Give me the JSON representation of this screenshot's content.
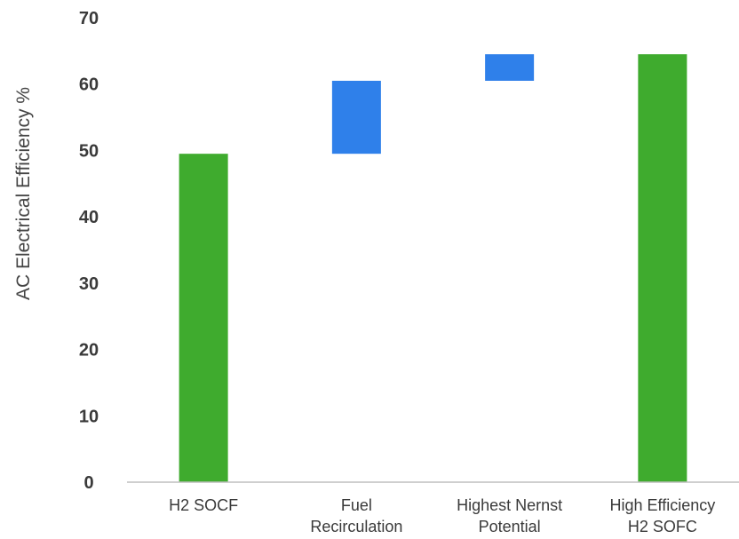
{
  "chart_data": {
    "type": "bar",
    "subtype": "waterfall",
    "title": "",
    "xlabel": "",
    "ylabel": "AC Electrical Efficiency  %",
    "ylim": [
      0,
      70
    ],
    "yticks": [
      "0",
      "10",
      "20",
      "30",
      "40",
      "50",
      "60",
      "70"
    ],
    "grid": false,
    "categories": [
      [
        "H2 SOCF"
      ],
      [
        "Fuel",
        "Recirculation"
      ],
      [
        "Highest Nernst",
        "Potential"
      ],
      [
        "High Efficiency",
        "H2 SOFC"
      ]
    ],
    "bars": [
      {
        "kind": "total",
        "start": 0,
        "end": 49.5
      },
      {
        "kind": "increase",
        "start": 49.5,
        "end": 60.5
      },
      {
        "kind": "increase",
        "start": 60.5,
        "end": 64.5
      },
      {
        "kind": "total",
        "start": 0,
        "end": 64.5
      }
    ],
    "colors": {
      "total": "#3fab2e",
      "increase": "#2f80ea",
      "axis": "#bfbfbf"
    }
  }
}
